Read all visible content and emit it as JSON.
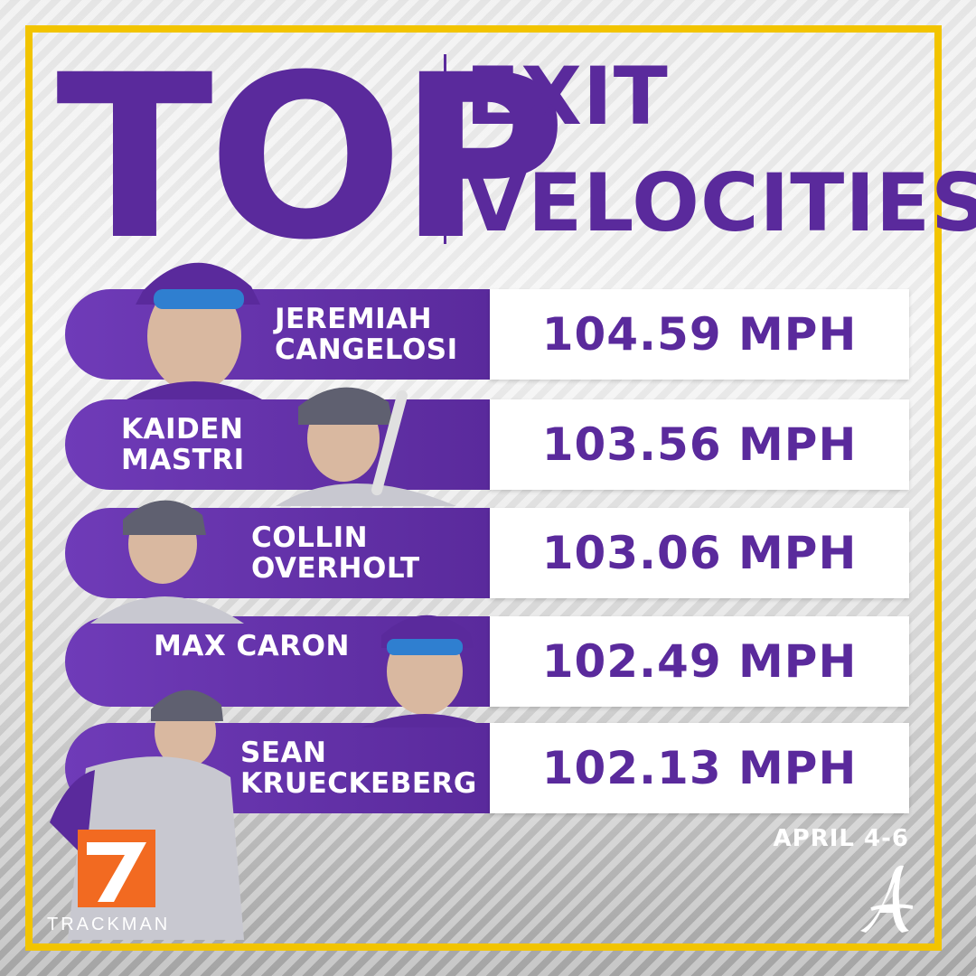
{
  "header": {
    "top": "TOP",
    "line1": "EXIT",
    "line2": "VELOCITIES"
  },
  "players": [
    {
      "first": "JEREMIAH",
      "last": "CANGELOSI",
      "value": "104.59 MPH"
    },
    {
      "first": "KAIDEN",
      "last": "MASTRI",
      "value": "103.56 MPH"
    },
    {
      "first": "COLLIN",
      "last": "OVERHOLT",
      "value": "103.06 MPH"
    },
    {
      "first": "MAX CARON",
      "last": "",
      "value": "102.49 MPH"
    },
    {
      "first": "SEAN",
      "last": "KRUECKEBERG",
      "value": "102.13 MPH"
    }
  ],
  "footer": {
    "date": "APRIL 4-6",
    "sponsor": "TRACKMAN"
  },
  "colors": {
    "purple": "#5a2a9c",
    "gold": "#f2c400",
    "orange": "#f26a21"
  }
}
